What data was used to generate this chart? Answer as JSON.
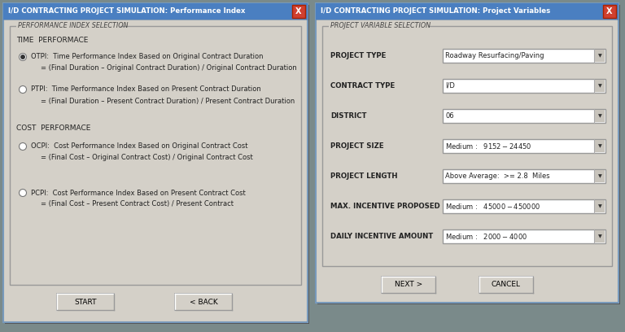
{
  "win1": {
    "title": "I/D CONTRACTING PROJECT SIMULATION: Performance Index",
    "title_bar_color": "#4a7fc1",
    "title_text_color": "#ffffff",
    "bg_color": "#d4d0c8",
    "group_label": "PERFORMANCE INDEX SELECTION",
    "section1_label": "TIME  PERFORMACE",
    "section2_label": "COST  PERFORMACE",
    "radio1_label": "OTPI:  Time Performance Index Based on Original Contract Duration",
    "radio1_formula": "= (Final Duration – Original Contract Duration) / Original Contract Duration",
    "radio1_selected": true,
    "radio2_label": "PTPI:  Time Performance Index Based on Present Contract Duration",
    "radio2_formula": "= (Final Duration – Present Contract Duration) / Present Contract Duration",
    "radio2_selected": false,
    "radio3_label": "OCPI:  Cost Performance Index Based on Original Contract Cost",
    "radio3_formula": "= (Final Cost – Original Contract Cost) / Original Contract Cost",
    "radio3_selected": false,
    "radio4_label": "PCPI:  Cost Performance Index Based on Present Contract Cost",
    "radio4_formula": "= (Final Cost – Present Contract Cost) / Present Contract",
    "radio4_selected": false,
    "btn1": "START",
    "btn2": "< BACK",
    "close_color": "#d04030"
  },
  "win2": {
    "title": "I/D CONTRACTING PROJECT SIMULATION: Project Variables",
    "title_bar_color": "#4a7fc1",
    "title_text_color": "#ffffff",
    "bg_color": "#d4d0c8",
    "group_label": "PROJECT VARIABLE SELECTION",
    "fields": [
      {
        "label": "PROJECT TYPE",
        "value": "Roadway Resurfacing/Paving"
      },
      {
        "label": "CONTRACT TYPE",
        "value": "I/D"
      },
      {
        "label": "DISTRICT",
        "value": "06"
      },
      {
        "label": "PROJECT SIZE",
        "value": "Medium :   $9152 - $24450"
      },
      {
        "label": "PROJECT LENGTH",
        "value": "Above Average:  >= 2.8  Miles"
      },
      {
        "label": "MAX. INCENTIVE PROPOSED",
        "value": "Medium :   $45000 - $450000"
      },
      {
        "label": "DAILY INCENTIVE AMOUNT",
        "value": "Medium :   $2000 - $4000"
      }
    ],
    "btn1": "NEXT >",
    "btn2": "CANCEL",
    "close_color": "#d04030"
  },
  "outer_bg": "#7a8a8a"
}
